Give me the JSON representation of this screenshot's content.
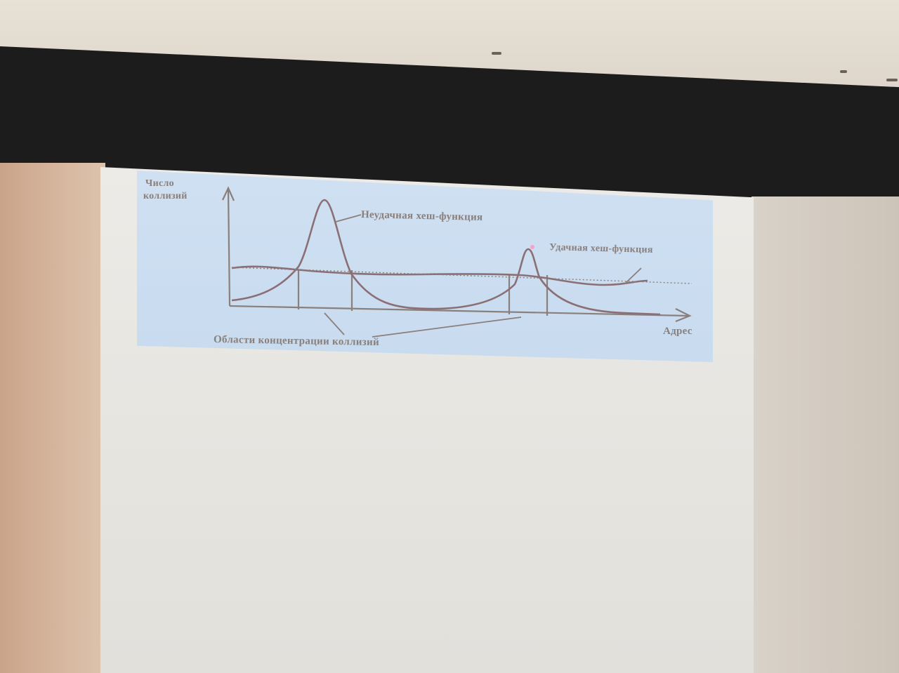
{
  "figure": {
    "y_axis_label_line1": "Число",
    "y_axis_label_line2": "коллизий",
    "x_axis_label": "Адрес",
    "bad_function_label": "Неудачная хеш-функция",
    "good_function_label": "Удачная хеш-функция",
    "regions_label": "Области концентрации коллизий"
  },
  "colors": {
    "curve": "#8b6f74",
    "axis": "#8a7f7a",
    "slide_background": "#cfe0f2"
  }
}
